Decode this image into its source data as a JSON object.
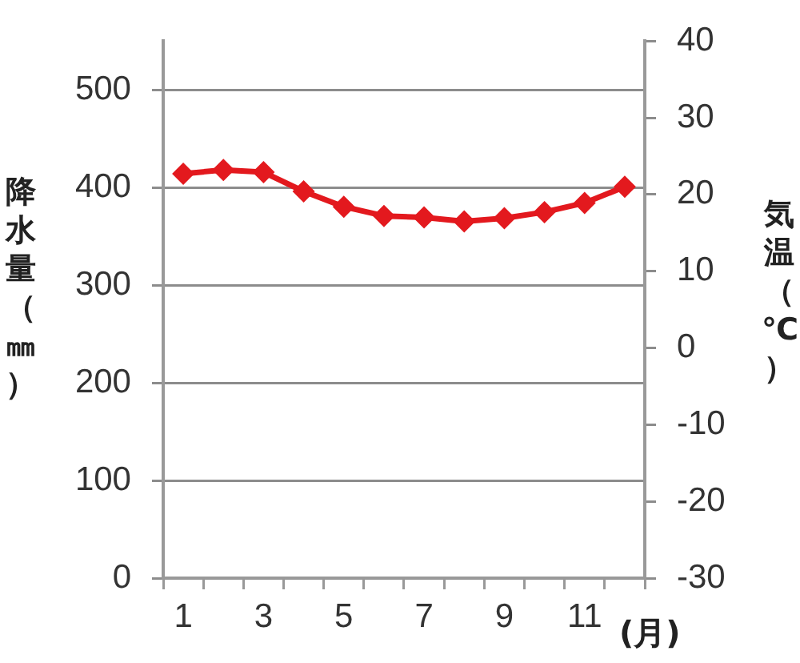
{
  "chart_data": {
    "type": "line",
    "categories": [
      "1",
      null,
      "3",
      null,
      "5",
      null,
      "7",
      null,
      "9",
      null,
      "11",
      null
    ],
    "xlabel": "(月)",
    "ylabel": "降水量（㎜）",
    "y2label": "気温（℃）",
    "ylim": [
      0,
      550
    ],
    "yticks": [
      0,
      100,
      200,
      300,
      400,
      500
    ],
    "y2lim": [
      -30,
      40
    ],
    "y2ticks": [
      -30,
      -20,
      -10,
      0,
      10,
      20,
      30,
      40
    ],
    "series": [
      {
        "axis": "y2",
        "color": "#e3191e",
        "values": [
          22.7,
          23.2,
          22.9,
          20.4,
          18.4,
          17.2,
          17.0,
          16.5,
          16.9,
          17.7,
          18.9,
          21.0
        ]
      }
    ],
    "grid": "y",
    "legend": false,
    "marker": "diamond",
    "line_style": "solid"
  }
}
